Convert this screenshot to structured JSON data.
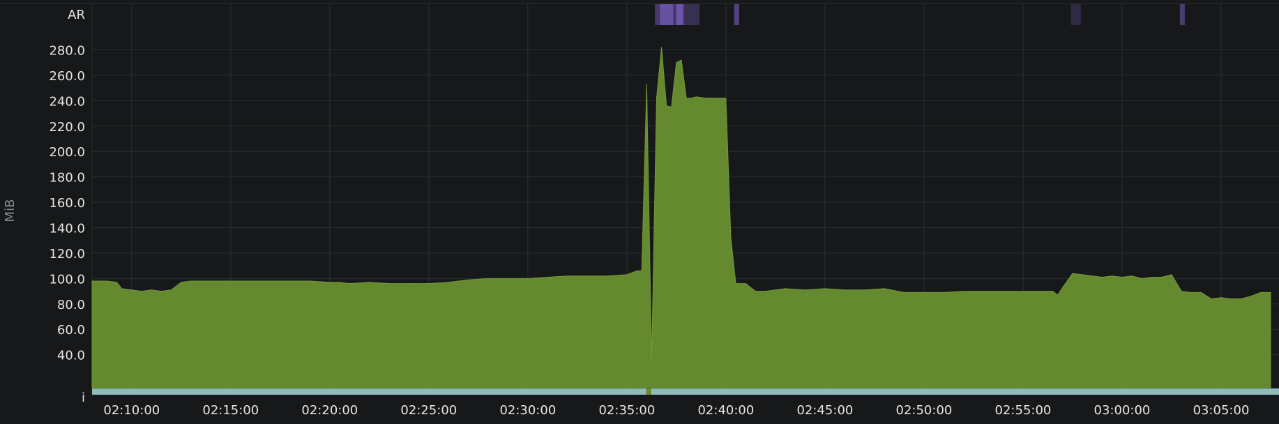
{
  "chart_data": {
    "type": "area",
    "title": "",
    "ylabel": "MiB",
    "xlabel": "",
    "ylim": [
      14,
      294
    ],
    "xlim": [
      "02:08:00",
      "03:07:30"
    ],
    "y_ticks": [
      "40.0",
      "60.0",
      "80.0",
      "100.0",
      "120.0",
      "140.0",
      "160.0",
      "180.0",
      "200.0",
      "220.0",
      "240.0",
      "260.0",
      "280.0"
    ],
    "x_ticks": [
      "02:10:00",
      "02:15:00",
      "02:20:00",
      "02:25:00",
      "02:30:00",
      "02:35:00",
      "02:40:00",
      "02:45:00",
      "02:50:00",
      "02:55:00",
      "03:00:00",
      "03:05:00"
    ],
    "grid": true,
    "colors": {
      "background": "#161819",
      "grid": "#2c2f31",
      "area": "#65892f",
      "area_edge": "#73993a",
      "text": "#e6e6e6",
      "axis_label": "#8a8e91",
      "ar_band": "#6c55a8",
      "i_band": "#8fbcbb",
      "i_marker": "#6b8a2a"
    },
    "series": [
      {
        "x": [
          "02:08:00",
          "02:08:45",
          "02:09:15",
          "02:09:30",
          "02:10:00",
          "02:10:30",
          "02:11:00",
          "02:11:30",
          "02:12:00",
          "02:12:30",
          "02:13:00",
          "02:14:00",
          "02:15:00",
          "02:16:00",
          "02:17:00",
          "02:18:00",
          "02:19:00",
          "02:20:00",
          "02:20:30",
          "02:21:00",
          "02:22:00",
          "02:23:00",
          "02:24:00",
          "02:25:00",
          "02:26:00",
          "02:27:00",
          "02:28:00",
          "02:29:00",
          "02:30:00",
          "02:31:00",
          "02:32:00",
          "02:33:00",
          "02:34:00",
          "02:35:00",
          "02:35:30",
          "02:35:45",
          "02:36:00",
          "02:36:15",
          "02:36:30",
          "02:36:45",
          "02:37:00",
          "02:37:15",
          "02:37:30",
          "02:37:45",
          "02:38:00",
          "02:38:15",
          "02:38:30",
          "02:39:00",
          "02:39:30",
          "02:40:00",
          "02:40:15",
          "02:40:30",
          "02:41:00",
          "02:41:30",
          "02:42:00",
          "02:43:00",
          "02:44:00",
          "02:45:00",
          "02:46:00",
          "02:47:00",
          "02:48:00",
          "02:49:00",
          "02:50:00",
          "02:51:00",
          "02:52:00",
          "02:53:00",
          "02:54:00",
          "02:55:00",
          "02:56:00",
          "02:56:30",
          "02:56:45",
          "02:57:00",
          "02:57:30",
          "02:58:00",
          "02:58:30",
          "02:59:00",
          "02:59:30",
          "03:00:00",
          "03:00:30",
          "03:01:00",
          "03:01:30",
          "03:02:00",
          "03:02:30",
          "03:03:00",
          "03:03:30",
          "03:04:00",
          "03:04:30",
          "03:05:00",
          "03:05:30",
          "03:06:00",
          "03:06:30",
          "03:07:00",
          "03:07:30"
        ],
        "values": [
          98,
          98,
          97,
          92,
          91,
          90,
          91,
          90,
          91,
          97,
          98,
          98,
          98,
          98,
          98,
          98,
          98,
          97,
          97,
          96,
          97,
          96,
          96,
          96,
          97,
          99,
          100,
          100,
          100,
          101,
          102,
          102,
          102,
          103,
          106,
          106,
          253,
          35,
          242,
          282,
          236,
          235,
          270,
          272,
          242,
          242,
          243,
          242,
          242,
          242,
          132,
          96,
          96,
          90,
          90,
          92,
          91,
          92,
          91,
          91,
          92,
          89,
          89,
          89,
          90,
          90,
          90,
          90,
          90,
          90,
          87,
          93,
          104,
          103,
          102,
          101,
          102,
          101,
          102,
          100,
          101,
          101,
          103,
          90,
          89,
          89,
          84,
          85,
          84,
          84,
          86,
          89,
          89
        ]
      }
    ],
    "ar_band": {
      "label": "AR",
      "segments": [
        {
          "start": "02:36:25",
          "end": "02:37:55",
          "intensity": 0.55
        },
        {
          "start": "02:36:40",
          "end": "02:37:20",
          "intensity": 0.9
        },
        {
          "start": "02:37:30",
          "end": "02:37:50",
          "intensity": 1.0
        },
        {
          "start": "02:37:55",
          "end": "02:38:40",
          "intensity": 0.4
        },
        {
          "start": "02:40:25",
          "end": "02:40:40",
          "intensity": 0.7
        },
        {
          "start": "02:57:25",
          "end": "02:57:55",
          "intensity": 0.3
        },
        {
          "start": "03:02:55",
          "end": "03:03:10",
          "intensity": 0.6
        }
      ]
    },
    "i_band": {
      "label": "i",
      "marker": "02:36:05"
    }
  }
}
